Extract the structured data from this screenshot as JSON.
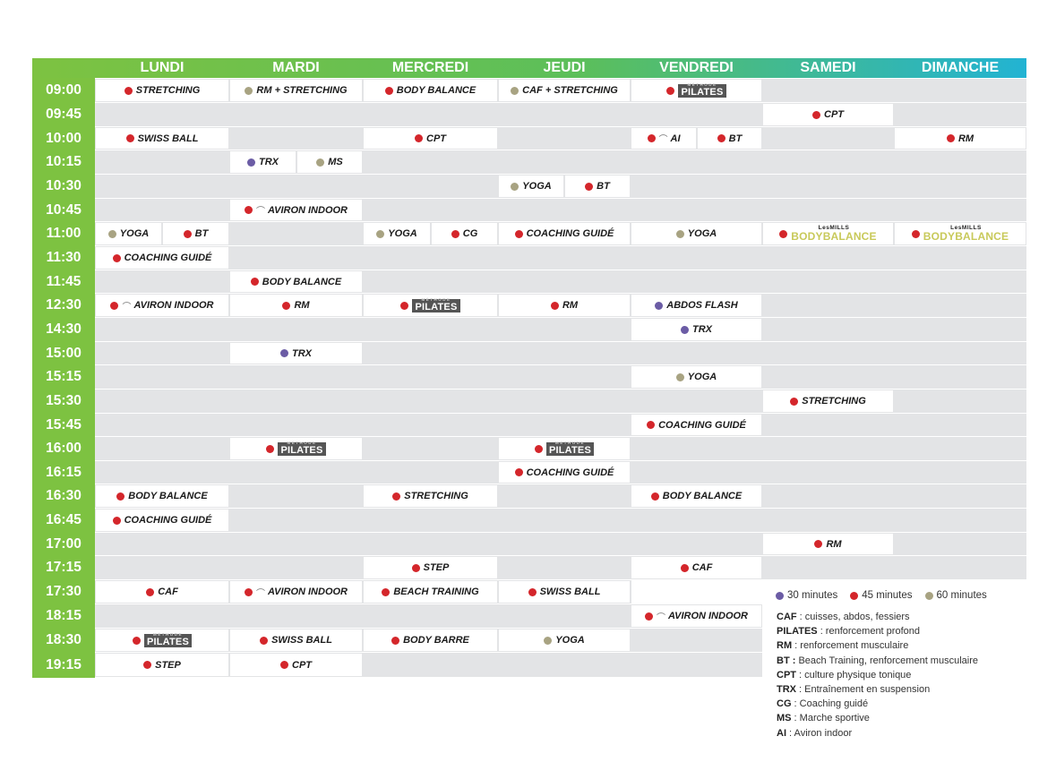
{
  "days": [
    "LUNDI",
    "MARDI",
    "MERCREDI",
    "JEUDI",
    "VENDREDI",
    "SAMEDI",
    "DIMANCHE"
  ],
  "times": [
    "09:00",
    "09:45",
    "10:00",
    "10:15",
    "10:30",
    "10:45",
    "11:00",
    "11:30",
    "11:45",
    "12:30",
    "14:30",
    "15:00",
    "15:15",
    "15:30",
    "15:45",
    "16:00",
    "16:15",
    "16:30",
    "16:45",
    "17:00",
    "17:15",
    "17:30",
    "18:15",
    "18:30",
    "19:15"
  ],
  "colors": {
    "min30": "#6b5ca5",
    "min45": "#d4262b",
    "min60": "#a8a382",
    "header_green": "#7dc241",
    "header_blue": "#22b3d3",
    "grey": "#e3e4e6"
  },
  "classes": [
    {
      "row": 0,
      "col": 0,
      "span": 2,
      "label": "STRETCHING",
      "dur": 45
    },
    {
      "row": 0,
      "col": 2,
      "span": 2,
      "label": "RM + STRETCHING",
      "dur": 60
    },
    {
      "row": 0,
      "col": 4,
      "span": 2,
      "label": "BODY BALANCE",
      "dur": 45
    },
    {
      "row": 0,
      "col": 6,
      "span": 2,
      "label": "CAF + STRETCHING",
      "dur": 60
    },
    {
      "row": 0,
      "col": 8,
      "span": 2,
      "label": "",
      "dur": 45,
      "brand": "pilates"
    },
    {
      "row": 1,
      "col": 10,
      "span": 2,
      "label": "CPT",
      "dur": 45
    },
    {
      "row": 2,
      "col": 0,
      "span": 2,
      "label": "SWISS BALL",
      "dur": 45
    },
    {
      "row": 2,
      "col": 4,
      "span": 2,
      "label": "CPT",
      "dur": 45
    },
    {
      "row": 2,
      "col": 8,
      "span": 1,
      "label": "AI",
      "dur": 45,
      "rower": true
    },
    {
      "row": 2,
      "col": 9,
      "span": 1,
      "label": "BT",
      "dur": 45
    },
    {
      "row": 2,
      "col": 12,
      "span": 2,
      "label": "RM",
      "dur": 45
    },
    {
      "row": 3,
      "col": 2,
      "span": 1,
      "label": "TRX",
      "dur": 30
    },
    {
      "row": 3,
      "col": 3,
      "span": 1,
      "label": "MS",
      "dur": 60
    },
    {
      "row": 4,
      "col": 6,
      "span": 1,
      "label": "YOGA",
      "dur": 60
    },
    {
      "row": 4,
      "col": 7,
      "span": 1,
      "label": "BT",
      "dur": 45
    },
    {
      "row": 5,
      "col": 2,
      "span": 2,
      "label": "AVIRON INDOOR",
      "dur": 45,
      "rower": true
    },
    {
      "row": 6,
      "col": 0,
      "span": 1,
      "label": "YOGA",
      "dur": 60
    },
    {
      "row": 6,
      "col": 1,
      "span": 1,
      "label": "BT",
      "dur": 45
    },
    {
      "row": 6,
      "col": 4,
      "span": 1,
      "label": "YOGA",
      "dur": 60
    },
    {
      "row": 6,
      "col": 5,
      "span": 1,
      "label": "CG",
      "dur": 45
    },
    {
      "row": 6,
      "col": 6,
      "span": 2,
      "label": "COACHING GUIDÉ",
      "dur": 45
    },
    {
      "row": 6,
      "col": 8,
      "span": 2,
      "label": "YOGA",
      "dur": 60
    },
    {
      "row": 6,
      "col": 10,
      "span": 2,
      "label": "",
      "dur": 45,
      "brand": "lesmills"
    },
    {
      "row": 6,
      "col": 12,
      "span": 2,
      "label": "",
      "dur": 45,
      "brand": "lesmills"
    },
    {
      "row": 7,
      "col": 0,
      "span": 2,
      "label": "COACHING GUIDÉ",
      "dur": 45
    },
    {
      "row": 8,
      "col": 2,
      "span": 2,
      "label": "BODY BALANCE",
      "dur": 45
    },
    {
      "row": 9,
      "col": 0,
      "span": 2,
      "label": "AVIRON INDOOR",
      "dur": 45,
      "rower": true
    },
    {
      "row": 9,
      "col": 2,
      "span": 2,
      "label": "RM",
      "dur": 45
    },
    {
      "row": 9,
      "col": 4,
      "span": 2,
      "label": "",
      "dur": 45,
      "brand": "pilates"
    },
    {
      "row": 9,
      "col": 6,
      "span": 2,
      "label": "RM",
      "dur": 45
    },
    {
      "row": 9,
      "col": 8,
      "span": 2,
      "label": "ABDOS FLASH",
      "dur": 30
    },
    {
      "row": 10,
      "col": 8,
      "span": 2,
      "label": "TRX",
      "dur": 30
    },
    {
      "row": 11,
      "col": 2,
      "span": 2,
      "label": "TRX",
      "dur": 30
    },
    {
      "row": 12,
      "col": 8,
      "span": 2,
      "label": "YOGA",
      "dur": 60
    },
    {
      "row": 13,
      "col": 10,
      "span": 2,
      "label": "STRETCHING",
      "dur": 45
    },
    {
      "row": 14,
      "col": 8,
      "span": 2,
      "label": "COACHING GUIDÉ",
      "dur": 45
    },
    {
      "row": 15,
      "col": 2,
      "span": 2,
      "label": "",
      "dur": 45,
      "brand": "pilates"
    },
    {
      "row": 15,
      "col": 6,
      "span": 2,
      "label": "",
      "dur": 45,
      "brand": "pilates"
    },
    {
      "row": 16,
      "col": 6,
      "span": 2,
      "label": "COACHING GUIDÉ",
      "dur": 45
    },
    {
      "row": 17,
      "col": 0,
      "span": 2,
      "label": "BODY BALANCE",
      "dur": 45
    },
    {
      "row": 17,
      "col": 4,
      "span": 2,
      "label": "STRETCHING",
      "dur": 45
    },
    {
      "row": 17,
      "col": 8,
      "span": 2,
      "label": "BODY BALANCE",
      "dur": 45
    },
    {
      "row": 18,
      "col": 0,
      "span": 2,
      "label": "COACHING GUIDÉ",
      "dur": 45
    },
    {
      "row": 19,
      "col": 10,
      "span": 2,
      "label": "RM",
      "dur": 45
    },
    {
      "row": 20,
      "col": 4,
      "span": 2,
      "label": "STEP",
      "dur": 45
    },
    {
      "row": 20,
      "col": 8,
      "span": 2,
      "label": "CAF",
      "dur": 45
    },
    {
      "row": 21,
      "col": 0,
      "span": 2,
      "label": "CAF",
      "dur": 45
    },
    {
      "row": 21,
      "col": 2,
      "span": 2,
      "label": "AVIRON INDOOR",
      "dur": 45,
      "rower": true
    },
    {
      "row": 21,
      "col": 4,
      "span": 2,
      "label": "BEACH TRAINING",
      "dur": 45
    },
    {
      "row": 21,
      "col": 6,
      "span": 2,
      "label": "SWISS BALL",
      "dur": 45
    },
    {
      "row": 22,
      "col": 8,
      "span": 2,
      "label": "AVIRON INDOOR",
      "dur": 45,
      "rower": true
    },
    {
      "row": 23,
      "col": 0,
      "span": 2,
      "label": "",
      "dur": 45,
      "brand": "pilates"
    },
    {
      "row": 23,
      "col": 2,
      "span": 2,
      "label": "SWISS BALL",
      "dur": 45
    },
    {
      "row": 23,
      "col": 4,
      "span": 2,
      "label": "BODY BARRE",
      "dur": 45
    },
    {
      "row": 23,
      "col": 6,
      "span": 2,
      "label": "YOGA",
      "dur": 60
    },
    {
      "row": 24,
      "col": 0,
      "span": 2,
      "label": "STEP",
      "dur": 45
    },
    {
      "row": 24,
      "col": 2,
      "span": 2,
      "label": "CPT",
      "dur": 45
    }
  ],
  "brands": {
    "pilates": {
      "top": "MÉTHODE",
      "bottom": "PILATES"
    },
    "lesmills": {
      "top": "LesMILLS",
      "bottom": "BODYBALANCE"
    }
  },
  "legend": {
    "durations": [
      "30 minutes",
      "45 minutes",
      "60 minutes"
    ],
    "abbreviations": [
      {
        "key": "CAF",
        "desc": " : cuisses, abdos, fessiers"
      },
      {
        "key": "PILATES",
        "desc": " : renforcement profond"
      },
      {
        "key": "RM",
        "desc": " : renforcement musculaire"
      },
      {
        "key": "BT :",
        "desc": " Beach Training, renforcement musculaire"
      },
      {
        "key": "CPT",
        "desc": " : culture physique tonique"
      },
      {
        "key": "TRX",
        "desc": " : Entraînement en suspension"
      },
      {
        "key": "CG",
        "desc": " : Coaching guidé"
      },
      {
        "key": "MS",
        "desc": " : Marche sportive"
      },
      {
        "key": "AI",
        "desc": " : Aviron indoor"
      }
    ]
  }
}
